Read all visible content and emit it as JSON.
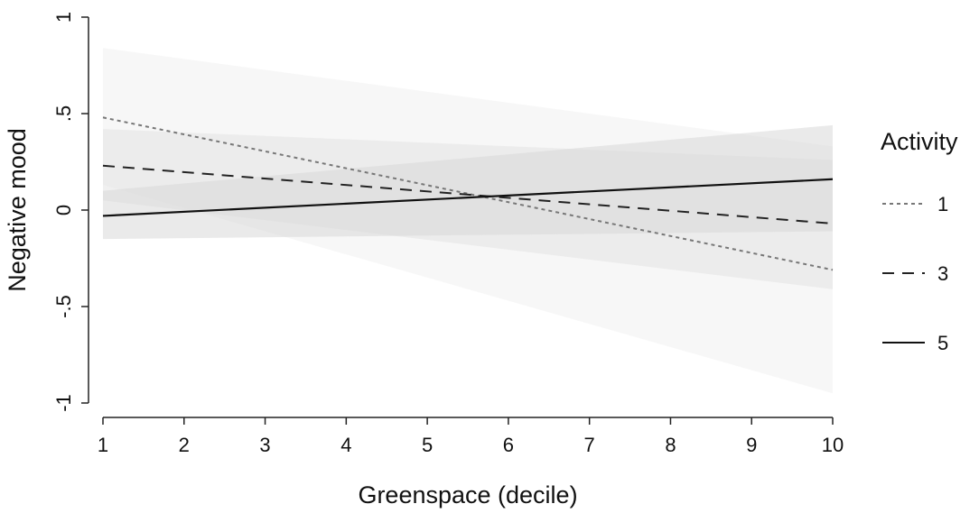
{
  "chart_data": {
    "type": "line",
    "title": "",
    "xlabel": "Greenspace (decile)",
    "ylabel": "Negative mood",
    "xlim": [
      1,
      10
    ],
    "ylim": [
      -1,
      1
    ],
    "xticks": [
      1,
      2,
      3,
      4,
      5,
      6,
      7,
      8,
      9,
      10
    ],
    "xtick_labels": [
      "1",
      "2",
      "3",
      "4",
      "5",
      "6",
      "7",
      "8",
      "9",
      "10"
    ],
    "yticks": [
      1,
      0.5,
      0,
      -0.5,
      -1
    ],
    "ytick_labels": [
      "1",
      ".5",
      "0",
      "-.5",
      "-1"
    ],
    "grid": false,
    "legend": {
      "title": "Activity",
      "position": "right"
    },
    "series": [
      {
        "name": "1",
        "style": "dotted",
        "color": "#777777",
        "band_color": "#f0f0f0",
        "x": [
          1,
          10
        ],
        "y": [
          0.48,
          -0.31
        ],
        "ci_lower": [
          0.13,
          -0.95
        ],
        "ci_upper": [
          0.84,
          0.33
        ]
      },
      {
        "name": "3",
        "style": "dashed",
        "color": "#222222",
        "band_color": "#e4e4e4",
        "x": [
          1,
          10
        ],
        "y": [
          0.23,
          -0.07
        ],
        "ci_lower": [
          0.05,
          -0.41
        ],
        "ci_upper": [
          0.42,
          0.26
        ]
      },
      {
        "name": "5",
        "style": "solid",
        "color": "#111111",
        "band_color": "#d9d9d9",
        "x": [
          1,
          10
        ],
        "y": [
          -0.03,
          0.16
        ],
        "ci_lower": [
          -0.15,
          -0.11
        ],
        "ci_upper": [
          0.1,
          0.44
        ]
      }
    ]
  }
}
